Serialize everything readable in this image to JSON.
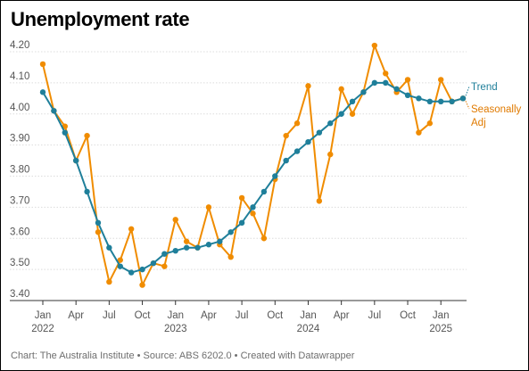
{
  "title": "Unemployment rate",
  "footer": "Chart: The Australia Institute  • Source: ABS 6202.0 • Created with Datawrapper",
  "colors": {
    "trend": "#1f7f9a",
    "seasonally_adj": "#f08c00",
    "grid": "#dcdcdc",
    "axis": "#333333"
  },
  "chart_data": {
    "type": "line",
    "ylim": [
      3.4,
      4.2
    ],
    "y_ticks": [
      "4.20",
      "4.10",
      "4.00",
      "3.90",
      "3.80",
      "3.70",
      "3.60",
      "3.50",
      "3.40"
    ],
    "x_ticks": [
      {
        "index": 0,
        "label": "Jan",
        "year": "2022"
      },
      {
        "index": 3,
        "label": "Apr",
        "year": ""
      },
      {
        "index": 6,
        "label": "Jul",
        "year": ""
      },
      {
        "index": 9,
        "label": "Oct",
        "year": ""
      },
      {
        "index": 12,
        "label": "Jan",
        "year": "2023"
      },
      {
        "index": 15,
        "label": "Apr",
        "year": ""
      },
      {
        "index": 18,
        "label": "Jul",
        "year": ""
      },
      {
        "index": 21,
        "label": "Oct",
        "year": ""
      },
      {
        "index": 24,
        "label": "Jan",
        "year": "2024"
      },
      {
        "index": 27,
        "label": "Apr",
        "year": ""
      },
      {
        "index": 30,
        "label": "Jul",
        "year": ""
      },
      {
        "index": 33,
        "label": "Oct",
        "year": ""
      },
      {
        "index": 36,
        "label": "Jan",
        "year": "2025"
      }
    ],
    "series": [
      {
        "name": "Seasonally Adj",
        "color": "#f08c00",
        "values": [
          4.16,
          4.01,
          3.96,
          3.85,
          3.93,
          3.62,
          3.46,
          3.53,
          3.63,
          3.45,
          3.52,
          3.51,
          3.66,
          3.59,
          3.57,
          3.7,
          3.58,
          3.54,
          3.73,
          3.68,
          3.6,
          3.79,
          3.93,
          3.97,
          4.09,
          3.72,
          3.87,
          4.08,
          4.0,
          4.07,
          4.22,
          4.13,
          4.07,
          4.11,
          3.94,
          3.97,
          4.11,
          4.04,
          4.05
        ]
      },
      {
        "name": "Trend",
        "color": "#1f7f9a",
        "values": [
          4.07,
          4.01,
          3.94,
          3.85,
          3.75,
          3.65,
          3.57,
          3.51,
          3.49,
          3.5,
          3.52,
          3.55,
          3.56,
          3.57,
          3.57,
          3.58,
          3.59,
          3.62,
          3.65,
          3.7,
          3.75,
          3.8,
          3.85,
          3.88,
          3.91,
          3.94,
          3.97,
          4.0,
          4.04,
          4.07,
          4.1,
          4.1,
          4.08,
          4.06,
          4.05,
          4.04,
          4.04,
          4.04,
          4.05
        ]
      }
    ],
    "legend": [
      {
        "lines": [
          "Trend"
        ],
        "color": "#1f7f9a",
        "series_index": 1
      },
      {
        "lines": [
          "Seasonally",
          "Adj"
        ],
        "color": "#e07a00",
        "series_index": 0
      }
    ]
  }
}
